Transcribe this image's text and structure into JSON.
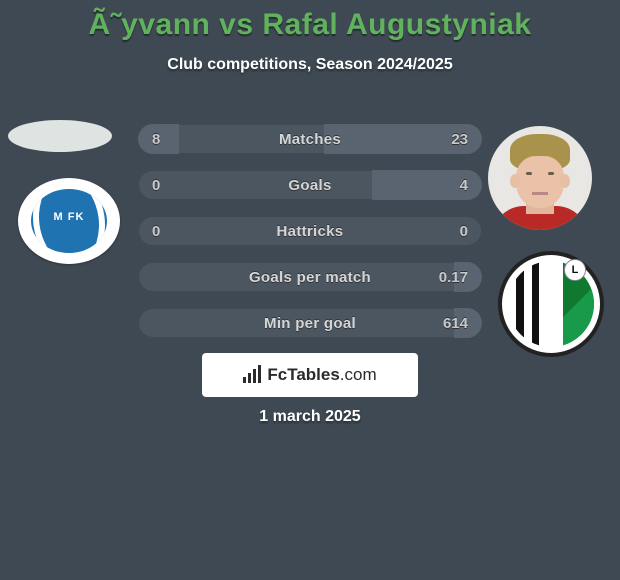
{
  "title_color": "#61b25d",
  "title": "Ã˜yvann vs Rafal Augustyniak",
  "subtitle": "Club competitions, Season 2024/2025",
  "date": "1 march 2025",
  "brand": {
    "name": "FcTables",
    "domain": ".com"
  },
  "background_color": "#3f4953",
  "row_bg": "#4c5660",
  "row_fill": "#596470",
  "left_club_text": "M FK",
  "right_badge_letter": "L",
  "stats": [
    {
      "label": "Matches",
      "a": "8",
      "b": "23",
      "a_pct": 12,
      "b_pct": 46
    },
    {
      "label": "Goals",
      "a": "0",
      "b": "4",
      "a_pct": 0,
      "b_pct": 32
    },
    {
      "label": "Hattricks",
      "a": "0",
      "b": "0",
      "a_pct": 0,
      "b_pct": 0
    },
    {
      "label": "Goals per match",
      "a": "",
      "b": "0.17",
      "a_pct": 0,
      "b_pct": 8
    },
    {
      "label": "Min per goal",
      "a": "",
      "b": "614",
      "a_pct": 0,
      "b_pct": 8
    }
  ]
}
